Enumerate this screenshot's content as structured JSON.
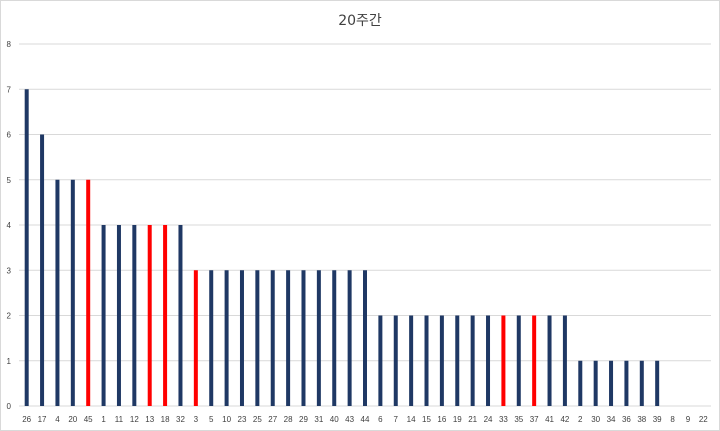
{
  "chart_data": {
    "type": "bar",
    "title": "20주간",
    "xlabel": "",
    "ylabel": "",
    "ylim": [
      0,
      8
    ],
    "yticks": [
      0,
      1,
      2,
      3,
      4,
      5,
      6,
      7,
      8
    ],
    "grid": true,
    "legend": "none",
    "categories": [
      "26",
      "17",
      "4",
      "20",
      "45",
      "1",
      "11",
      "12",
      "13",
      "18",
      "32",
      "3",
      "5",
      "10",
      "23",
      "25",
      "27",
      "28",
      "29",
      "31",
      "40",
      "43",
      "44",
      "6",
      "7",
      "14",
      "15",
      "16",
      "19",
      "21",
      "24",
      "33",
      "35",
      "37",
      "41",
      "42",
      "2",
      "30",
      "34",
      "36",
      "38",
      "39",
      "8",
      "9",
      "22"
    ],
    "values": [
      7,
      6,
      5,
      5,
      5,
      4,
      4,
      4,
      4,
      4,
      4,
      3,
      3,
      3,
      3,
      3,
      3,
      3,
      3,
      3,
      3,
      3,
      3,
      2,
      2,
      2,
      2,
      2,
      2,
      2,
      2,
      2,
      2,
      2,
      2,
      2,
      1,
      1,
      1,
      1,
      1,
      1,
      0,
      0,
      0
    ],
    "highlighted": [
      "45",
      "13",
      "18",
      "3",
      "33",
      "37"
    ],
    "colors": {
      "default": "#1f3864",
      "highlight": "#ff0000",
      "grid": "#d9d9d9",
      "text": "#404040"
    }
  }
}
